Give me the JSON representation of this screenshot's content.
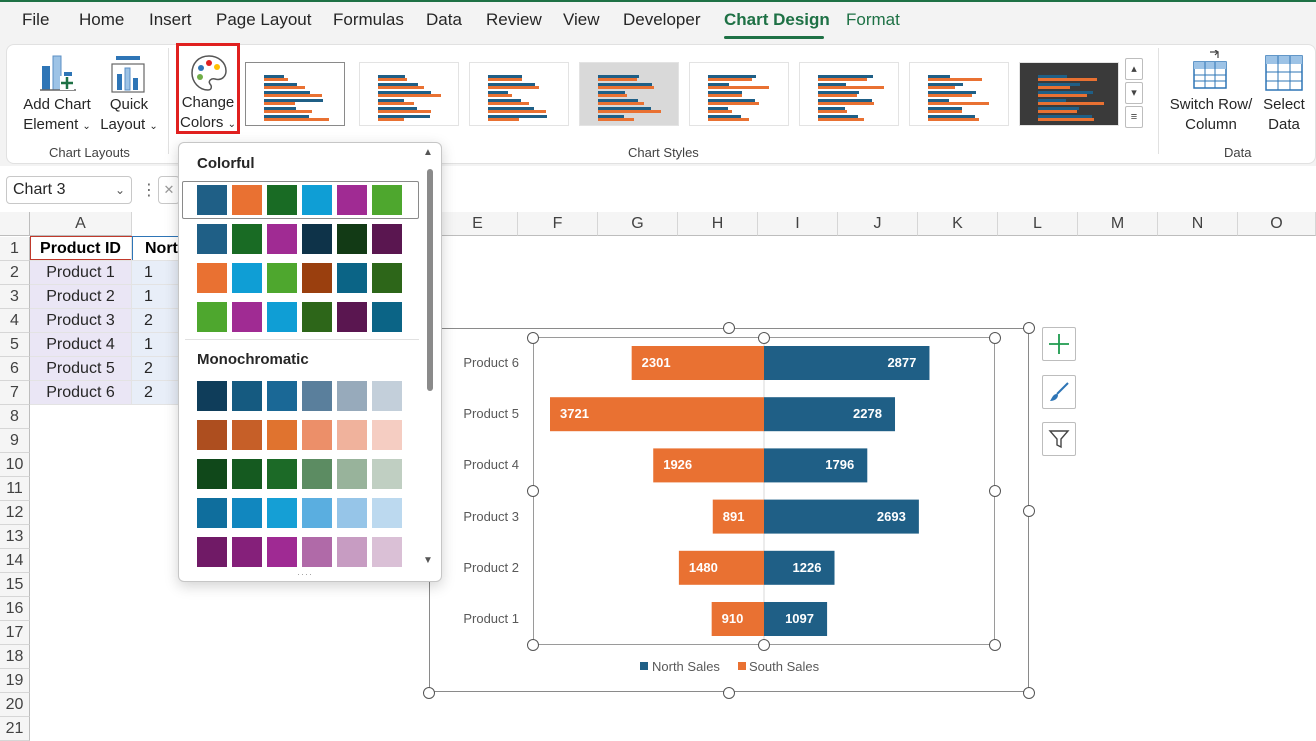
{
  "menu": {
    "items": [
      "File",
      "Home",
      "Insert",
      "Page Layout",
      "Formulas",
      "Data",
      "Review",
      "View",
      "Developer",
      "Chart Design",
      "Format"
    ],
    "active": "Chart Design"
  },
  "ribbon": {
    "add_chart_element": [
      "Add Chart",
      "Element"
    ],
    "quick_layout": [
      "Quick",
      "Layout"
    ],
    "change_colors": [
      "Change",
      "Colors"
    ],
    "switch_row_column": [
      "Switch Row/",
      "Column"
    ],
    "select_data": [
      "Select",
      "Data"
    ],
    "groups": {
      "chart_layouts": "Chart Layouts",
      "chart_styles": "Chart Styles",
      "data": "Data"
    }
  },
  "formula_bar": {
    "name_box": "Chart 3"
  },
  "sheet": {
    "columns": [
      "A",
      "E",
      "F",
      "G",
      "H",
      "I",
      "J",
      "K",
      "L",
      "M",
      "N",
      "O"
    ],
    "rows": [
      "1",
      "2",
      "3",
      "4",
      "5",
      "6",
      "7",
      "8",
      "9",
      "10",
      "11",
      "12",
      "13",
      "14",
      "15",
      "16",
      "17",
      "18",
      "19",
      "20",
      "21"
    ],
    "header": [
      "Product ID",
      "Nort"
    ],
    "data": [
      [
        "Product 1",
        "1"
      ],
      [
        "Product 2",
        "1"
      ],
      [
        "Product 3",
        "2"
      ],
      [
        "Product 4",
        "1"
      ],
      [
        "Product 5",
        "2"
      ],
      [
        "Product 6",
        "2"
      ]
    ]
  },
  "color_dropdown": {
    "colorful_title": "Colorful",
    "monochromatic_title": "Monochromatic",
    "colorful": [
      [
        "#1f5f86",
        "#e97132",
        "#196b24",
        "#0f9ed5",
        "#a02b93",
        "#4ea72e"
      ],
      [
        "#1f5f86",
        "#196b24",
        "#a02b93",
        "#0e3349",
        "#123a15",
        "#5a1650"
      ],
      [
        "#e97132",
        "#0f9ed5",
        "#4ea72e",
        "#9a3f0e",
        "#0b6486",
        "#2d6619"
      ],
      [
        "#4ea72e",
        "#a02b93",
        "#0f9ed5",
        "#2d6619",
        "#5a1650",
        "#0b6486"
      ]
    ],
    "monochromatic": [
      [
        "#0f3d5a",
        "#155a80",
        "#1a6896",
        "#5a7f9c",
        "#97aabb",
        "#c3cfda"
      ],
      [
        "#ad4e1f",
        "#c65f28",
        "#e0732f",
        "#ec8f69",
        "#f0b29c",
        "#f5cdc2"
      ],
      [
        "#10481a",
        "#155a20",
        "#1c6a27",
        "#5c8c62",
        "#98b39b",
        "#c0cfc2"
      ],
      [
        "#0f6e9d",
        "#1187bf",
        "#159fd5",
        "#5aaee0",
        "#96c5e8",
        "#bcd9ef"
      ],
      [
        "#701a66",
        "#85207a",
        "#9f2a93",
        "#b06aa8",
        "#c79cc2",
        "#dac0d6"
      ]
    ]
  },
  "chart_data": {
    "type": "bar",
    "orientation": "horizontal",
    "categories": [
      "Product 6",
      "Product 5",
      "Product 4",
      "Product 3",
      "Product 2",
      "Product 1"
    ],
    "series": [
      {
        "name": "North Sales",
        "values": [
          2877,
          2278,
          1796,
          2693,
          1226,
          1097
        ],
        "color": "#1f5f86"
      },
      {
        "name": "South Sales",
        "values": [
          2301,
          3721,
          1926,
          891,
          1480,
          910
        ],
        "color": "#e97132"
      }
    ],
    "layout": "butterfly",
    "legend": "bottom",
    "data_labels": true
  }
}
